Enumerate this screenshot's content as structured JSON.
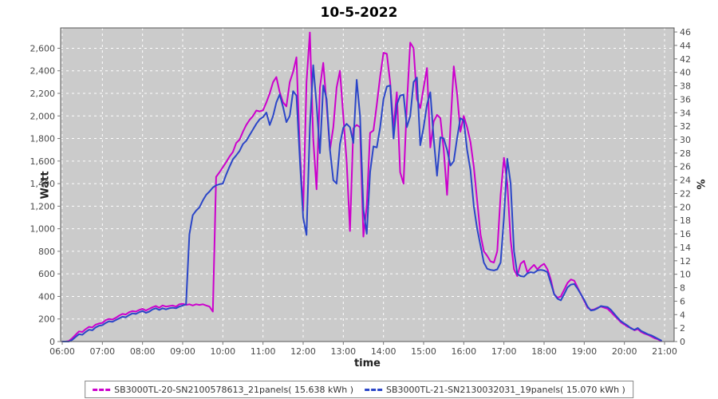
{
  "chart_data": {
    "type": "line",
    "title": "10-5-2022",
    "xlabel": "time",
    "ylabel_left": "Watt",
    "ylabel_right": "%",
    "grid": true,
    "legend_position": "bottom",
    "plot_bg_color": "#cbcbcb",
    "grid_color": "#ffffff",
    "x_range_hours": [
      6,
      21
    ],
    "x_tick_labels": [
      "06:00",
      "07:00",
      "08:00",
      "09:00",
      "10:00",
      "11:00",
      "12:00",
      "13:00",
      "14:00",
      "15:00",
      "16:00",
      "17:00",
      "18:00",
      "19:00",
      "20:00",
      "21:00"
    ],
    "y_left_axis": {
      "min": 0,
      "tick_step": 200,
      "max_visible": 2600,
      "plot_top_value": 2780
    },
    "y_left_tick_labels": [
      "0",
      "200",
      "400",
      "600",
      "800",
      "1,000",
      "1,200",
      "1,400",
      "1,600",
      "1,800",
      "2,000",
      "2,200",
      "2,400",
      "2,600"
    ],
    "y_right_axis": {
      "min": 0,
      "tick_step": 2,
      "max_visible": 46,
      "plot_top_value": 46.6
    },
    "y_right_tick_labels": [
      "0",
      "2",
      "4",
      "6",
      "8",
      "10",
      "12",
      "14",
      "16",
      "18",
      "20",
      "22",
      "24",
      "26",
      "28",
      "30",
      "32",
      "34",
      "36",
      "38",
      "40",
      "42",
      "44",
      "46"
    ],
    "series": [
      {
        "name": "SB3000TL-20-SN2100578613_21panels( 15.638 kWh )",
        "color": "#cc00cc",
        "unit": "Watt",
        "start_hour": 6,
        "step_minutes": 5,
        "values": [
          0,
          0,
          5,
          30,
          60,
          90,
          85,
          110,
          130,
          125,
          150,
          160,
          165,
          190,
          200,
          195,
          210,
          230,
          245,
          240,
          260,
          270,
          265,
          280,
          290,
          275,
          290,
          305,
          315,
          300,
          320,
          310,
          315,
          320,
          310,
          330,
          335,
          325,
          330,
          320,
          330,
          325,
          330,
          320,
          310,
          265,
          1460,
          1500,
          1545,
          1590,
          1640,
          1680,
          1760,
          1790,
          1860,
          1920,
          1965,
          2000,
          2048,
          2040,
          2050,
          2120,
          2200,
          2300,
          2345,
          2210,
          2120,
          2085,
          2300,
          2390,
          2520,
          1700,
          1160,
          2300,
          2740,
          1800,
          1350,
          2250,
          2470,
          2100,
          1700,
          1900,
          2250,
          2400,
          2000,
          1600,
          980,
          1890,
          1920,
          1900,
          930,
          1200,
          1850,
          1870,
          2100,
          2350,
          2560,
          2550,
          2295,
          1890,
          2210,
          1500,
          1400,
          2100,
          2650,
          2600,
          2150,
          2070,
          2250,
          2425,
          1720,
          1950,
          2010,
          1980,
          1700,
          1300,
          1900,
          2440,
          2200,
          1860,
          2000,
          1900,
          1770,
          1550,
          1250,
          950,
          800,
          760,
          710,
          700,
          800,
          1300,
          1630,
          1400,
          900,
          640,
          580,
          690,
          715,
          615,
          650,
          680,
          640,
          670,
          690,
          640,
          550,
          420,
          390,
          400,
          460,
          520,
          550,
          540,
          480,
          420,
          360,
          300,
          280,
          285,
          300,
          310,
          300,
          290,
          260,
          230,
          200,
          170,
          150,
          130,
          120,
          100,
          110,
          85,
          70,
          60,
          45,
          30,
          20,
          5
        ]
      },
      {
        "name": "SB3000TL-21-SN2130032031_19panels( 15.070 kWh )",
        "color": "#2b46c8",
        "unit": "Watt",
        "start_hour": 6,
        "step_minutes": 5,
        "values": [
          0,
          0,
          0,
          15,
          40,
          65,
          60,
          85,
          105,
          100,
          125,
          140,
          145,
          165,
          180,
          175,
          190,
          205,
          220,
          215,
          235,
          250,
          245,
          260,
          270,
          255,
          265,
          285,
          295,
          280,
          295,
          285,
          295,
          300,
          295,
          310,
          320,
          330,
          950,
          1120,
          1160,
          1190,
          1250,
          1300,
          1330,
          1365,
          1385,
          1395,
          1400,
          1480,
          1550,
          1615,
          1650,
          1690,
          1750,
          1780,
          1830,
          1880,
          1930,
          1970,
          1990,
          2030,
          1920,
          2000,
          2120,
          2190,
          2080,
          1945,
          2000,
          2220,
          2180,
          1620,
          1100,
          945,
          1900,
          2450,
          2100,
          1670,
          2270,
          2150,
          1700,
          1430,
          1400,
          1750,
          1895,
          1930,
          1900,
          1760,
          2320,
          2000,
          1170,
          955,
          1500,
          1730,
          1720,
          1900,
          2150,
          2260,
          2270,
          1800,
          2100,
          2180,
          2190,
          1900,
          2000,
          2300,
          2340,
          1740,
          1900,
          2100,
          2210,
          1800,
          1470,
          1810,
          1800,
          1700,
          1560,
          1600,
          1800,
          1980,
          1960,
          1700,
          1520,
          1200,
          1000,
          850,
          700,
          645,
          635,
          630,
          640,
          700,
          1100,
          1620,
          1400,
          800,
          600,
          580,
          575,
          605,
          615,
          610,
          630,
          635,
          630,
          615,
          520,
          420,
          380,
          365,
          420,
          480,
          505,
          510,
          470,
          420,
          370,
          310,
          275,
          280,
          295,
          315,
          310,
          305,
          280,
          245,
          210,
          180,
          160,
          140,
          115,
          105,
          120,
          95,
          80,
          65,
          55,
          40,
          25,
          10
        ]
      }
    ]
  }
}
